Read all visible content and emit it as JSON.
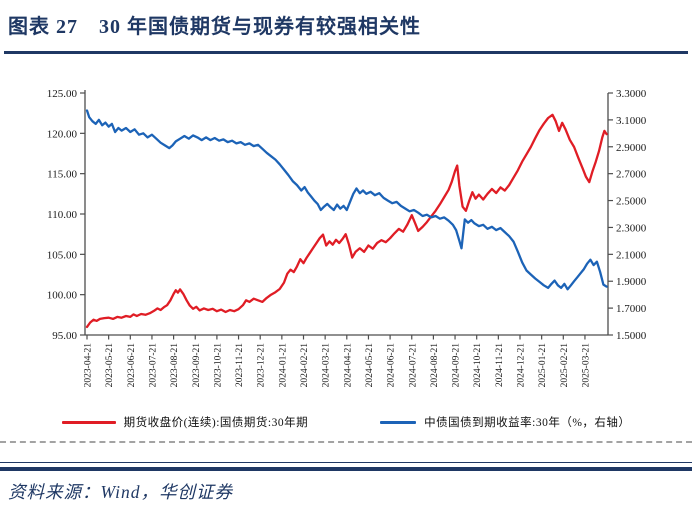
{
  "figure": {
    "title": "图表 27　30 年国债期货与现券有较强相关性",
    "source": "资料来源：Wind，华创证券"
  },
  "colors": {
    "navy": "#1f3864",
    "red_series": "#e01d25",
    "blue_series": "#1c63b7",
    "axis": "#4d4d4d"
  },
  "legend": {
    "futures": {
      "label": "期货收盘价(连续):国债期货:30年期",
      "color": "#e01d25"
    },
    "yield": {
      "label": "中债国债到期收益率:30年（%，右轴）",
      "color": "#1c63b7"
    }
  },
  "chart_data": {
    "type": "line",
    "title": "",
    "grid": false,
    "legend_position": "bottom",
    "left_axis": {
      "min": 95,
      "max": 125,
      "step": 5,
      "ticks": [
        "125.00",
        "120.00",
        "115.00",
        "110.00",
        "105.00",
        "100.00",
        "95.00"
      ]
    },
    "right_axis": {
      "min": 1.5,
      "max": 3.3,
      "step": 0.2,
      "ticks": [
        "3.3000",
        "3.1000",
        "2.9000",
        "2.7000",
        "2.5000",
        "2.3000",
        "2.1000",
        "1.9000",
        "1.7000",
        "1.5000"
      ]
    },
    "x_unit": "months since 2023-04-21",
    "x_range": [
      0,
      24.06
    ],
    "x_ticks": [
      "2023-04-21",
      "2023-05-21",
      "2023-06-21",
      "2023-07-21",
      "2023-08-21",
      "2023-09-21",
      "2023-10-21",
      "2023-11-21",
      "2023-12-21",
      "2024-01-21",
      "2024-02-21",
      "2024-03-21",
      "2024-04-21",
      "2024-05-21",
      "2024-06-21",
      "2024-07-21",
      "2024-08-21",
      "2024-09-21",
      "2024-10-21",
      "2024-11-21",
      "2024-12-21",
      "2025-01-21",
      "2025-02-21",
      "2025-03-21"
    ],
    "series": [
      {
        "name": "期货收盘价(连续):国债期货:30年期",
        "axis": "left",
        "color": "#e01d25",
        "points": [
          [
            0,
            96.0
          ],
          [
            0.15,
            96.55
          ],
          [
            0.3,
            96.9
          ],
          [
            0.45,
            96.75
          ],
          [
            0.6,
            97.0
          ],
          [
            0.8,
            97.1
          ],
          [
            1.0,
            97.15
          ],
          [
            1.2,
            97.0
          ],
          [
            1.4,
            97.25
          ],
          [
            1.6,
            97.15
          ],
          [
            1.8,
            97.35
          ],
          [
            2.0,
            97.25
          ],
          [
            2.15,
            97.55
          ],
          [
            2.3,
            97.35
          ],
          [
            2.5,
            97.6
          ],
          [
            2.7,
            97.5
          ],
          [
            2.9,
            97.7
          ],
          [
            3.1,
            98.0
          ],
          [
            3.25,
            98.3
          ],
          [
            3.4,
            98.1
          ],
          [
            3.55,
            98.45
          ],
          [
            3.7,
            98.7
          ],
          [
            3.85,
            99.3
          ],
          [
            4.0,
            100.1
          ],
          [
            4.1,
            100.55
          ],
          [
            4.2,
            100.25
          ],
          [
            4.3,
            100.65
          ],
          [
            4.45,
            100.1
          ],
          [
            4.6,
            99.3
          ],
          [
            4.75,
            98.65
          ],
          [
            4.9,
            98.25
          ],
          [
            5.05,
            98.5
          ],
          [
            5.2,
            98.05
          ],
          [
            5.4,
            98.3
          ],
          [
            5.6,
            98.1
          ],
          [
            5.8,
            98.25
          ],
          [
            6.0,
            97.95
          ],
          [
            6.2,
            98.15
          ],
          [
            6.4,
            97.85
          ],
          [
            6.6,
            98.1
          ],
          [
            6.8,
            97.95
          ],
          [
            7.0,
            98.2
          ],
          [
            7.2,
            98.7
          ],
          [
            7.35,
            99.3
          ],
          [
            7.5,
            99.1
          ],
          [
            7.7,
            99.5
          ],
          [
            7.9,
            99.3
          ],
          [
            8.1,
            99.1
          ],
          [
            8.3,
            99.6
          ],
          [
            8.5,
            100.0
          ],
          [
            8.7,
            100.3
          ],
          [
            8.9,
            100.7
          ],
          [
            9.1,
            101.5
          ],
          [
            9.25,
            102.6
          ],
          [
            9.4,
            103.1
          ],
          [
            9.55,
            102.8
          ],
          [
            9.7,
            103.5
          ],
          [
            9.85,
            104.4
          ],
          [
            10.0,
            103.9
          ],
          [
            10.15,
            104.6
          ],
          [
            10.3,
            105.2
          ],
          [
            10.45,
            105.8
          ],
          [
            10.6,
            106.4
          ],
          [
            10.75,
            107.0
          ],
          [
            10.9,
            107.45
          ],
          [
            11.05,
            106.1
          ],
          [
            11.2,
            106.6
          ],
          [
            11.35,
            106.2
          ],
          [
            11.5,
            106.8
          ],
          [
            11.65,
            106.4
          ],
          [
            11.8,
            106.9
          ],
          [
            11.95,
            107.5
          ],
          [
            12.1,
            106.2
          ],
          [
            12.25,
            104.6
          ],
          [
            12.4,
            105.3
          ],
          [
            12.6,
            105.75
          ],
          [
            12.8,
            105.3
          ],
          [
            13.0,
            106.1
          ],
          [
            13.2,
            105.7
          ],
          [
            13.4,
            106.4
          ],
          [
            13.6,
            106.75
          ],
          [
            13.8,
            106.5
          ],
          [
            14.0,
            107.0
          ],
          [
            14.2,
            107.6
          ],
          [
            14.4,
            108.15
          ],
          [
            14.6,
            107.8
          ],
          [
            14.8,
            108.7
          ],
          [
            15.0,
            109.85
          ],
          [
            15.15,
            108.9
          ],
          [
            15.3,
            107.9
          ],
          [
            15.5,
            108.4
          ],
          [
            15.7,
            109.0
          ],
          [
            15.9,
            109.7
          ],
          [
            16.1,
            110.4
          ],
          [
            16.3,
            111.2
          ],
          [
            16.5,
            112.1
          ],
          [
            16.7,
            113.0
          ],
          [
            16.85,
            114.0
          ],
          [
            17.0,
            115.3
          ],
          [
            17.1,
            116.0
          ],
          [
            17.2,
            113.5
          ],
          [
            17.35,
            110.9
          ],
          [
            17.5,
            110.4
          ],
          [
            17.65,
            111.6
          ],
          [
            17.8,
            112.7
          ],
          [
            17.95,
            111.9
          ],
          [
            18.1,
            112.4
          ],
          [
            18.3,
            111.8
          ],
          [
            18.5,
            112.5
          ],
          [
            18.7,
            113.1
          ],
          [
            18.9,
            112.6
          ],
          [
            19.1,
            113.3
          ],
          [
            19.3,
            112.9
          ],
          [
            19.5,
            113.6
          ],
          [
            19.7,
            114.5
          ],
          [
            19.9,
            115.4
          ],
          [
            20.1,
            116.5
          ],
          [
            20.3,
            117.4
          ],
          [
            20.5,
            118.3
          ],
          [
            20.7,
            119.4
          ],
          [
            20.9,
            120.4
          ],
          [
            21.1,
            121.2
          ],
          [
            21.3,
            121.9
          ],
          [
            21.5,
            122.3
          ],
          [
            21.65,
            121.5
          ],
          [
            21.8,
            120.3
          ],
          [
            21.95,
            121.3
          ],
          [
            22.1,
            120.5
          ],
          [
            22.3,
            119.2
          ],
          [
            22.5,
            118.3
          ],
          [
            22.7,
            116.9
          ],
          [
            22.9,
            115.6
          ],
          [
            23.05,
            114.6
          ],
          [
            23.2,
            113.95
          ],
          [
            23.35,
            115.3
          ],
          [
            23.5,
            116.5
          ],
          [
            23.65,
            117.8
          ],
          [
            23.8,
            119.5
          ],
          [
            23.9,
            120.3
          ],
          [
            24.0,
            119.9
          ]
        ]
      },
      {
        "name": "中债国债到期收益率:30年（%，右轴）",
        "axis": "right",
        "color": "#1c63b7",
        "points": [
          [
            0,
            3.17
          ],
          [
            0.1,
            3.12
          ],
          [
            0.25,
            3.09
          ],
          [
            0.4,
            3.07
          ],
          [
            0.55,
            3.1
          ],
          [
            0.7,
            3.06
          ],
          [
            0.85,
            3.08
          ],
          [
            1.0,
            3.05
          ],
          [
            1.15,
            3.07
          ],
          [
            1.3,
            3.01
          ],
          [
            1.45,
            3.04
          ],
          [
            1.6,
            3.02
          ],
          [
            1.8,
            3.04
          ],
          [
            2.0,
            3.01
          ],
          [
            2.2,
            3.03
          ],
          [
            2.4,
            2.99
          ],
          [
            2.6,
            3.0
          ],
          [
            2.8,
            2.97
          ],
          [
            3.0,
            2.99
          ],
          [
            3.2,
            2.96
          ],
          [
            3.4,
            2.93
          ],
          [
            3.6,
            2.91
          ],
          [
            3.8,
            2.89
          ],
          [
            3.95,
            2.91
          ],
          [
            4.1,
            2.94
          ],
          [
            4.3,
            2.96
          ],
          [
            4.5,
            2.98
          ],
          [
            4.7,
            2.96
          ],
          [
            4.9,
            2.985
          ],
          [
            5.1,
            2.97
          ],
          [
            5.3,
            2.95
          ],
          [
            5.5,
            2.97
          ],
          [
            5.7,
            2.95
          ],
          [
            5.9,
            2.965
          ],
          [
            6.1,
            2.945
          ],
          [
            6.3,
            2.955
          ],
          [
            6.5,
            2.935
          ],
          [
            6.7,
            2.945
          ],
          [
            6.9,
            2.925
          ],
          [
            7.1,
            2.935
          ],
          [
            7.3,
            2.915
          ],
          [
            7.5,
            2.925
          ],
          [
            7.7,
            2.905
          ],
          [
            7.9,
            2.915
          ],
          [
            8.1,
            2.885
          ],
          [
            8.3,
            2.855
          ],
          [
            8.5,
            2.83
          ],
          [
            8.7,
            2.805
          ],
          [
            8.9,
            2.77
          ],
          [
            9.1,
            2.73
          ],
          [
            9.3,
            2.69
          ],
          [
            9.5,
            2.645
          ],
          [
            9.7,
            2.615
          ],
          [
            9.9,
            2.575
          ],
          [
            10.05,
            2.6
          ],
          [
            10.2,
            2.56
          ],
          [
            10.35,
            2.53
          ],
          [
            10.5,
            2.5
          ],
          [
            10.65,
            2.475
          ],
          [
            10.8,
            2.43
          ],
          [
            10.95,
            2.455
          ],
          [
            11.1,
            2.475
          ],
          [
            11.25,
            2.45
          ],
          [
            11.4,
            2.43
          ],
          [
            11.55,
            2.47
          ],
          [
            11.7,
            2.44
          ],
          [
            11.85,
            2.46
          ],
          [
            12.0,
            2.43
          ],
          [
            12.15,
            2.49
          ],
          [
            12.3,
            2.55
          ],
          [
            12.45,
            2.59
          ],
          [
            12.6,
            2.555
          ],
          [
            12.75,
            2.575
          ],
          [
            12.9,
            2.55
          ],
          [
            13.1,
            2.565
          ],
          [
            13.3,
            2.54
          ],
          [
            13.5,
            2.555
          ],
          [
            13.7,
            2.52
          ],
          [
            13.9,
            2.5
          ],
          [
            14.1,
            2.48
          ],
          [
            14.3,
            2.49
          ],
          [
            14.5,
            2.46
          ],
          [
            14.7,
            2.44
          ],
          [
            14.9,
            2.42
          ],
          [
            15.1,
            2.43
          ],
          [
            15.3,
            2.41
          ],
          [
            15.5,
            2.385
          ],
          [
            15.7,
            2.395
          ],
          [
            15.9,
            2.375
          ],
          [
            16.1,
            2.385
          ],
          [
            16.3,
            2.365
          ],
          [
            16.5,
            2.375
          ],
          [
            16.7,
            2.35
          ],
          [
            16.9,
            2.32
          ],
          [
            17.05,
            2.28
          ],
          [
            17.2,
            2.2
          ],
          [
            17.3,
            2.145
          ],
          [
            17.45,
            2.36
          ],
          [
            17.6,
            2.335
          ],
          [
            17.75,
            2.355
          ],
          [
            17.9,
            2.33
          ],
          [
            18.1,
            2.31
          ],
          [
            18.3,
            2.32
          ],
          [
            18.5,
            2.29
          ],
          [
            18.7,
            2.305
          ],
          [
            18.9,
            2.28
          ],
          [
            19.1,
            2.295
          ],
          [
            19.3,
            2.265
          ],
          [
            19.5,
            2.235
          ],
          [
            19.7,
            2.195
          ],
          [
            19.9,
            2.12
          ],
          [
            20.1,
            2.04
          ],
          [
            20.3,
            1.98
          ],
          [
            20.5,
            1.95
          ],
          [
            20.7,
            1.92
          ],
          [
            20.9,
            1.895
          ],
          [
            21.1,
            1.87
          ],
          [
            21.3,
            1.85
          ],
          [
            21.45,
            1.88
          ],
          [
            21.6,
            1.905
          ],
          [
            21.75,
            1.87
          ],
          [
            21.9,
            1.85
          ],
          [
            22.05,
            1.88
          ],
          [
            22.2,
            1.84
          ],
          [
            22.35,
            1.87
          ],
          [
            22.5,
            1.9
          ],
          [
            22.65,
            1.93
          ],
          [
            22.8,
            1.96
          ],
          [
            22.95,
            1.99
          ],
          [
            23.1,
            2.03
          ],
          [
            23.25,
            2.06
          ],
          [
            23.4,
            2.02
          ],
          [
            23.55,
            2.045
          ],
          [
            23.7,
            1.97
          ],
          [
            23.85,
            1.875
          ],
          [
            24.0,
            1.86
          ]
        ]
      }
    ]
  }
}
